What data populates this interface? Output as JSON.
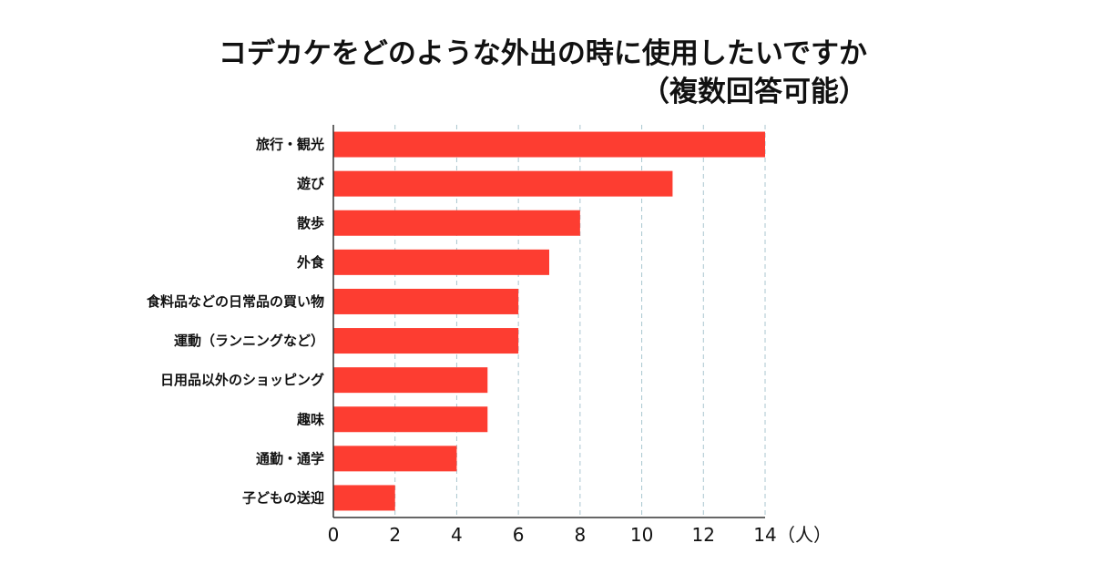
{
  "chart_data": {
    "type": "bar",
    "orientation": "horizontal",
    "title_lines": [
      "コデカケをどのような外出の時に使用したいですか",
      "（複数回答可能）"
    ],
    "title": "コデカケをどのような外出の時に使用したいですか（複数回答可能）",
    "categories": [
      "旅行・観光",
      "遊び",
      "散歩",
      "外食",
      "食料品などの日常品の買い物",
      "運動（ランニングなど）",
      "日用品以外のショッピング",
      "趣味",
      "通勤・通学",
      "子どもの送迎"
    ],
    "values": [
      14,
      11,
      8,
      7,
      6,
      6,
      5,
      5,
      4,
      2
    ],
    "xlabel": "（人）",
    "ylabel": "",
    "xlim": [
      0,
      14
    ],
    "xticks": [
      0,
      2,
      4,
      6,
      8,
      10,
      12,
      14
    ],
    "grid": "vertical dashed",
    "legend": "none",
    "colors": {
      "bar": "#fd3d31",
      "grid": "#a9c6cf",
      "axis": "#333333",
      "text": "#111111"
    }
  }
}
